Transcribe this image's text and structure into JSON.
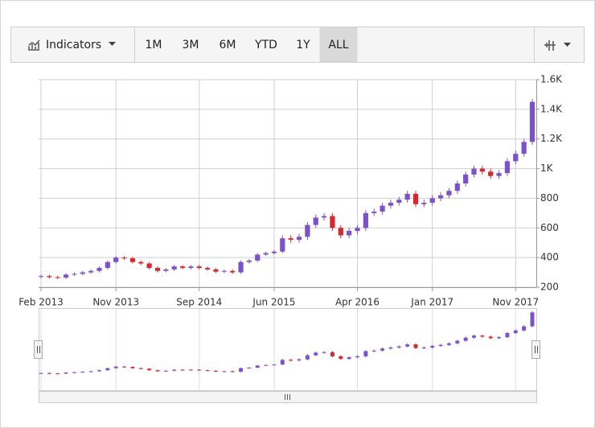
{
  "toolbar": {
    "indicators": "Indicators",
    "ranges": [
      "1M",
      "3M",
      "6M",
      "YTD",
      "1Y",
      "ALL"
    ],
    "selected": "ALL"
  },
  "chart_data": {
    "type": "candlestick",
    "x": [
      "2013-02",
      "2013-03",
      "2013-04",
      "2013-05",
      "2013-06",
      "2013-07",
      "2013-08",
      "2013-09",
      "2013-10",
      "2013-11",
      "2013-12",
      "2014-01",
      "2014-02",
      "2014-03",
      "2014-04",
      "2014-05",
      "2014-06",
      "2014-07",
      "2014-08",
      "2014-09",
      "2014-10",
      "2014-11",
      "2014-12",
      "2015-01",
      "2015-02",
      "2015-03",
      "2015-04",
      "2015-05",
      "2015-06",
      "2015-07",
      "2015-08",
      "2015-09",
      "2015-10",
      "2015-11",
      "2015-12",
      "2016-01",
      "2016-02",
      "2016-03",
      "2016-04",
      "2016-05",
      "2016-06",
      "2016-07",
      "2016-08",
      "2016-09",
      "2016-10",
      "2016-11",
      "2016-12",
      "2017-01",
      "2017-02",
      "2017-03",
      "2017-04",
      "2017-05",
      "2017-06",
      "2017-07",
      "2017-08",
      "2017-09",
      "2017-10",
      "2017-11",
      "2017-12",
      "2018-01"
    ],
    "open": [
      270,
      275,
      268,
      265,
      285,
      290,
      300,
      310,
      330,
      370,
      400,
      395,
      370,
      360,
      330,
      310,
      320,
      340,
      330,
      340,
      330,
      320,
      305,
      310,
      300,
      370,
      380,
      420,
      430,
      440,
      530,
      520,
      540,
      620,
      670,
      680,
      600,
      550,
      580,
      600,
      700,
      710,
      750,
      770,
      790,
      830,
      760,
      770,
      800,
      820,
      850,
      900,
      960,
      1000,
      980,
      950,
      970,
      1050,
      1100,
      1180
    ],
    "high": [
      285,
      285,
      278,
      295,
      300,
      310,
      320,
      340,
      380,
      410,
      410,
      405,
      380,
      370,
      340,
      330,
      350,
      350,
      350,
      350,
      340,
      330,
      320,
      320,
      380,
      390,
      430,
      440,
      450,
      550,
      550,
      560,
      640,
      690,
      700,
      700,
      620,
      600,
      620,
      720,
      730,
      770,
      790,
      810,
      850,
      850,
      790,
      820,
      840,
      870,
      920,
      980,
      1020,
      1020,
      1000,
      990,
      1070,
      1120,
      1200,
      1470
    ],
    "low": [
      260,
      258,
      255,
      255,
      275,
      280,
      290,
      300,
      320,
      360,
      385,
      360,
      350,
      320,
      300,
      300,
      310,
      320,
      320,
      320,
      310,
      295,
      295,
      290,
      290,
      360,
      370,
      410,
      420,
      430,
      500,
      500,
      520,
      600,
      650,
      580,
      530,
      530,
      560,
      580,
      680,
      690,
      730,
      750,
      770,
      740,
      740,
      750,
      780,
      800,
      830,
      880,
      940,
      960,
      930,
      930,
      950,
      1030,
      1080,
      1160
    ],
    "close": [
      275,
      268,
      265,
      285,
      290,
      300,
      310,
      330,
      370,
      400,
      395,
      370,
      360,
      330,
      310,
      320,
      340,
      330,
      340,
      330,
      320,
      305,
      310,
      300,
      370,
      380,
      420,
      430,
      440,
      530,
      520,
      540,
      620,
      670,
      680,
      600,
      550,
      580,
      600,
      700,
      710,
      750,
      770,
      790,
      830,
      760,
      770,
      800,
      820,
      850,
      900,
      960,
      1000,
      980,
      950,
      970,
      1050,
      1100,
      1180,
      1450
    ],
    "up_color": "#7b52c9",
    "down_color": "#d3292f",
    "xlim": [
      "2013-02",
      "2018-01"
    ],
    "xticks": [
      {
        "value": "2013-02",
        "label": "Feb 2013"
      },
      {
        "value": "2013-11",
        "label": "Nov 2013"
      },
      {
        "value": "2014-09",
        "label": "Sep 2014"
      },
      {
        "value": "2015-06",
        "label": "Jun 2015"
      },
      {
        "value": "2016-04",
        "label": "Apr 2016"
      },
      {
        "value": "2017-01",
        "label": "Jan 2017"
      },
      {
        "value": "2017-11",
        "label": "Nov 2017"
      }
    ],
    "ylim": [
      200,
      1600
    ],
    "yticks": [
      200,
      400,
      600,
      800,
      {
        "value": 1000,
        "label": "1K"
      },
      {
        "value": 1200,
        "label": "1.2K"
      },
      {
        "value": 1400,
        "label": "1.4K"
      },
      {
        "value": 1600,
        "label": "1.6K"
      }
    ],
    "grid": true,
    "navigator": true
  }
}
